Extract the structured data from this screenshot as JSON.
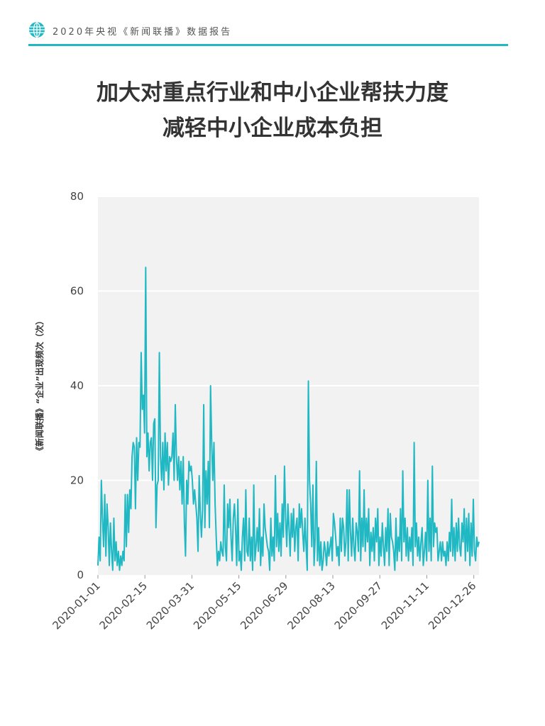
{
  "header": {
    "text": "2020年央视《新闻联播》数据报告",
    "icon": "globe-icon",
    "accent_color": "#1fb8c3"
  },
  "title": {
    "line1": "加大对重点行业和中小企业帮扶力度",
    "line2": "减轻中小企业成本负担"
  },
  "chart_data": {
    "type": "line",
    "title": "加大对重点行业和中小企业帮扶力度 减轻中小企业成本负担",
    "ylabel": "《新闻联播》“企业”出现频次（次）",
    "xlabel": "",
    "ylim": [
      0,
      80
    ],
    "yticks": [
      0,
      20,
      40,
      60,
      80
    ],
    "xlim": [
      "2020-01-01",
      "2020-12-31"
    ],
    "xticks": [
      "2020-01-01",
      "2020-02-15",
      "2020-03-31",
      "2020-05-15",
      "2020-06-29",
      "2020-08-13",
      "2020-09-27",
      "2020-11-11",
      "2020-12-26"
    ],
    "grid": true,
    "line_color": "#1fb8c3",
    "background_color": "#f2f2f2",
    "series": [
      {
        "values": [
          2,
          8,
          3,
          20,
          12,
          6,
          17,
          4,
          15,
          10,
          2,
          11,
          5,
          1,
          12,
          3,
          7,
          2,
          5,
          1,
          4,
          2,
          5,
          3,
          17,
          6,
          17,
          9,
          18,
          14,
          25,
          28,
          27,
          14,
          29,
          20,
          28,
          27,
          47,
          35,
          38,
          30,
          65,
          25,
          30,
          22,
          28,
          29,
          20,
          32,
          33,
          10,
          19,
          20,
          47,
          25,
          20,
          28,
          18,
          30,
          22,
          28,
          19,
          25,
          24,
          25,
          30,
          20,
          36,
          25,
          20,
          25,
          18,
          24,
          15,
          25,
          11,
          4,
          20,
          15,
          24,
          22,
          23,
          20,
          15,
          18,
          15,
          12,
          5,
          21,
          13,
          8,
          14,
          36,
          10,
          22,
          15,
          24,
          10,
          40,
          28,
          20,
          28,
          15,
          8,
          2,
          5,
          3,
          7,
          5,
          4,
          19,
          6,
          3,
          15,
          10,
          16,
          8,
          3,
          12,
          15,
          10,
          2,
          16,
          3,
          5,
          1,
          8,
          12,
          3,
          18,
          5,
          4,
          12,
          3,
          8,
          1,
          19,
          3,
          6,
          10,
          5,
          14,
          2,
          8,
          4,
          15,
          10,
          8,
          6,
          5,
          1,
          12,
          4,
          8,
          3,
          21,
          6,
          13,
          5,
          11,
          4,
          15,
          8,
          23,
          12,
          6,
          15,
          10,
          4,
          13,
          8,
          14,
          5,
          10,
          12,
          3,
          15,
          10,
          14,
          9,
          5,
          12,
          6,
          1,
          41,
          20,
          15,
          6,
          19,
          2,
          8,
          24,
          3,
          10,
          2,
          7,
          1,
          3,
          7,
          5,
          2,
          7,
          4,
          6,
          8,
          3,
          13,
          11,
          8,
          4,
          6,
          2,
          12,
          5,
          12,
          10,
          4,
          7,
          18,
          3,
          18,
          9,
          4,
          12,
          6,
          3,
          11,
          9,
          5,
          22,
          3,
          12,
          6,
          18,
          5,
          12,
          7,
          14,
          2,
          9,
          5,
          10,
          3,
          12,
          7,
          14,
          2,
          8,
          4,
          11,
          6,
          2,
          10,
          5,
          14,
          2,
          13,
          8,
          7,
          5,
          1,
          12,
          3,
          8,
          5,
          14,
          3,
          22,
          7,
          12,
          4,
          10,
          3,
          8,
          5,
          10,
          2,
          28,
          6,
          11,
          4,
          8,
          3,
          7,
          10,
          2,
          5,
          9,
          3,
          20,
          5,
          12,
          3,
          23,
          6,
          11,
          9,
          10,
          3,
          5,
          7,
          3,
          7,
          4,
          5,
          2,
          7,
          3,
          9,
          5,
          16,
          4,
          10,
          3,
          11,
          5,
          12,
          6,
          4,
          11,
          7,
          14,
          3,
          12,
          5,
          13,
          2,
          11,
          4,
          16,
          5,
          3,
          8,
          6,
          7
        ]
      }
    ]
  }
}
